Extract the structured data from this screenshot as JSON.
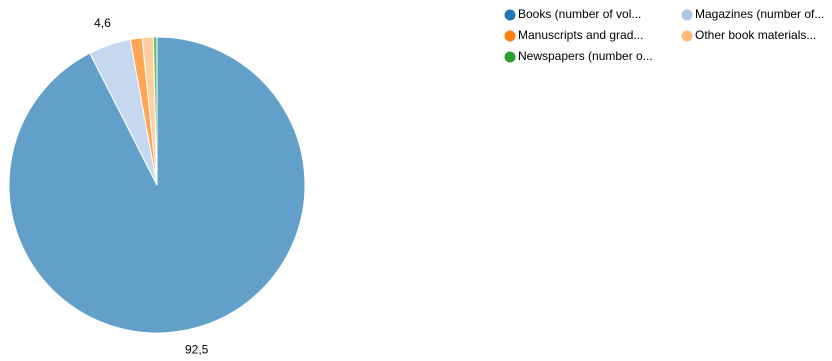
{
  "chart_data": {
    "type": "pie",
    "categories": [
      "Books (number of vol...",
      "Magazines (number of...",
      "Manuscripts and grad...",
      "Other book materials...",
      "Newspapers (number o..."
    ],
    "values": [
      92.5,
      4.6,
      1.3,
      1.2,
      0.4
    ],
    "value_labels": [
      "92,5",
      "4,6",
      null,
      null,
      null
    ],
    "colors": [
      "#1f77b4",
      "#aec7e8",
      "#ff7f0e",
      "#ffbb78",
      "#2ca02c"
    ]
  }
}
